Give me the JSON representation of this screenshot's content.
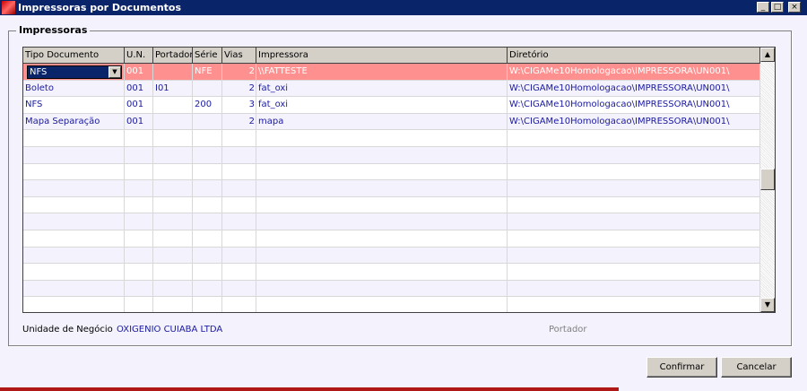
{
  "window": {
    "title": "Impressoras por Documentos",
    "controls": [
      "_",
      "□",
      "×"
    ]
  },
  "group": {
    "title": "Impressoras"
  },
  "grid": {
    "columns": [
      "Tipo Documento",
      "U.N.",
      "Portador",
      "Série",
      "Vias",
      "Impressora",
      "Diretório"
    ],
    "rows": [
      [
        "NFS",
        "001",
        "",
        "NFE",
        "2",
        "\\\\FATTESTE",
        "W:\\CIGAMe10Homologacao\\IMPRESSORA\\UN001\\"
      ],
      [
        "Boleto",
        "001",
        "I01",
        "",
        "2",
        "fat_oxi",
        "W:\\CIGAMe10Homologacao\\IMPRESSORA\\UN001\\"
      ],
      [
        "NFS",
        "001",
        "",
        "200",
        "3",
        "fat_oxi",
        "W:\\CIGAMe10Homologacao\\IMPRESSORA\\UN001\\"
      ],
      [
        "Mapa Separação",
        "001",
        "",
        "",
        "2",
        "mapa",
        "W:\\CIGAMe10Homologacao\\IMPRESSORA\\UN001\\"
      ]
    ],
    "selected_row": 0,
    "colors": {
      "selected": "#ff9090",
      "text": "#1a1aa0"
    }
  },
  "footer": {
    "unit_label": "Unidade de Negócio",
    "unit_value": "OXIGENIO CUIABA LTDA",
    "portador_label": "Portador"
  },
  "buttons": {
    "confirm": "Confirmar",
    "cancel": "Cancelar"
  }
}
